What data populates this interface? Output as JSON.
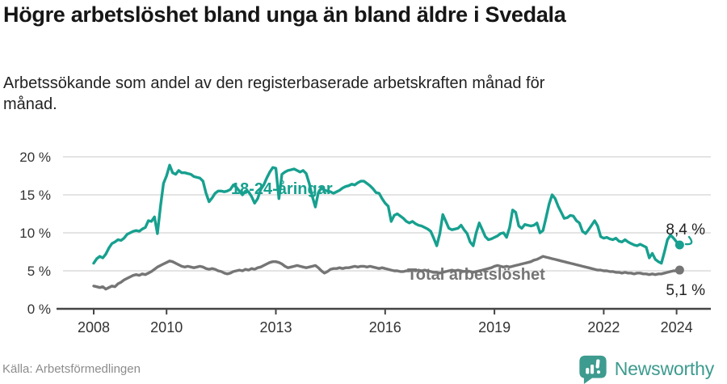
{
  "header": {
    "title": "Högre arbetslöshet bland unga än bland äldre i Svedala",
    "subtitle": "Arbetssökande som andel av den registerbaserade arbetskraften månad för månad."
  },
  "footer": {
    "source": "Källa: Arbetsförmedlingen",
    "brand": "Newsworthy",
    "brand_color": "#3d9b8f"
  },
  "chart_data": {
    "type": "line",
    "title": "",
    "xlabel": "",
    "ylabel": "",
    "x_unit": "year-month",
    "x_start": 2008.0,
    "x_step_years": 0.08333,
    "x_ticks": [
      2008,
      2010,
      2013,
      2016,
      2019,
      2022,
      2024
    ],
    "y_ticks": [
      0,
      5,
      10,
      15,
      20
    ],
    "y_tick_suffix": " %",
    "ylim": [
      0,
      20.5
    ],
    "xlim": [
      2007.2,
      2024.9
    ],
    "grid": true,
    "legend_position": "inline-labels",
    "series": [
      {
        "id": "youth",
        "name": "18-24-åringar",
        "color": "#17a08f",
        "end_label": "8,4 %",
        "end_value": 8.4,
        "values": [
          6.0,
          6.6,
          6.9,
          6.7,
          7.2,
          8.0,
          8.6,
          8.8,
          9.1,
          9.0,
          9.3,
          9.8,
          10.0,
          10.2,
          10.3,
          10.2,
          10.5,
          10.7,
          11.6,
          11.5,
          12.1,
          9.9,
          13.5,
          16.5,
          17.5,
          18.9,
          17.9,
          17.7,
          18.2,
          17.9,
          17.9,
          17.8,
          17.7,
          17.4,
          17.3,
          17.2,
          16.8,
          15.2,
          14.1,
          14.6,
          15.2,
          15.5,
          15.5,
          15.4,
          15.5,
          15.7,
          16.3,
          16.0,
          15.5,
          15.0,
          15.5,
          15.4,
          14.8,
          13.9,
          14.5,
          15.7,
          16.3,
          17.2,
          18.0,
          18.6,
          18.5,
          14.5,
          17.7,
          18.0,
          18.2,
          18.3,
          18.4,
          18.2,
          18.0,
          18.2,
          17.8,
          16.5,
          14.8,
          13.4,
          15.3,
          15.9,
          15.6,
          15.5,
          15.4,
          15.2,
          15.4,
          15.6,
          15.9,
          16.1,
          16.2,
          16.4,
          16.3,
          16.6,
          16.8,
          16.8,
          16.5,
          16.2,
          15.8,
          15.3,
          15.2,
          14.5,
          13.9,
          13.5,
          11.5,
          12.3,
          12.5,
          12.2,
          11.9,
          11.5,
          11.3,
          11.5,
          11.2,
          11.0,
          10.9,
          10.7,
          10.5,
          10.2,
          9.3,
          8.3,
          9.9,
          12.4,
          11.5,
          10.6,
          10.4,
          10.5,
          10.6,
          11.0,
          10.4,
          9.9,
          8.8,
          8.3,
          10.0,
          11.3,
          10.4,
          9.5,
          9.1,
          9.2,
          9.4,
          9.6,
          9.9,
          10.0,
          9.4,
          10.7,
          13.0,
          12.7,
          10.9,
          10.6,
          11.1,
          11.0,
          10.9,
          11.0,
          11.3,
          10.0,
          10.3,
          12.0,
          13.8,
          15.0,
          14.5,
          13.5,
          12.7,
          11.9,
          12.0,
          12.3,
          12.2,
          11.6,
          11.3,
          10.2,
          9.9,
          10.4,
          11.0,
          11.6,
          10.9,
          9.5,
          9.3,
          9.4,
          9.2,
          9.1,
          9.3,
          8.9,
          8.8,
          9.1,
          8.8,
          8.6,
          8.4,
          8.3,
          8.5,
          8.3,
          8.1,
          6.7,
          7.3,
          6.5,
          6.2,
          6.0,
          7.5,
          9.1,
          9.7,
          9.3,
          8.8,
          8.4
        ]
      },
      {
        "id": "total",
        "name": "Total arbetslöshet",
        "color": "#757575",
        "end_label": "5,1 %",
        "end_value": 5.1,
        "values": [
          3.0,
          2.9,
          2.8,
          2.9,
          2.6,
          2.8,
          3.0,
          2.9,
          3.3,
          3.5,
          3.8,
          4.0,
          4.2,
          4.4,
          4.5,
          4.4,
          4.6,
          4.5,
          4.7,
          4.9,
          5.2,
          5.5,
          5.7,
          5.9,
          6.1,
          6.3,
          6.2,
          6.0,
          5.8,
          5.6,
          5.5,
          5.6,
          5.5,
          5.4,
          5.5,
          5.6,
          5.5,
          5.3,
          5.2,
          5.3,
          5.2,
          5.0,
          4.9,
          4.7,
          4.6,
          4.7,
          4.9,
          5.0,
          5.1,
          5.0,
          5.2,
          5.1,
          5.3,
          5.2,
          5.4,
          5.5,
          5.7,
          5.9,
          6.1,
          6.2,
          6.2,
          6.1,
          5.9,
          5.6,
          5.4,
          5.5,
          5.6,
          5.7,
          5.6,
          5.5,
          5.4,
          5.5,
          5.6,
          5.7,
          5.4,
          5.0,
          4.7,
          4.9,
          5.2,
          5.3,
          5.3,
          5.4,
          5.3,
          5.4,
          5.4,
          5.5,
          5.6,
          5.5,
          5.6,
          5.6,
          5.5,
          5.6,
          5.5,
          5.4,
          5.3,
          5.4,
          5.3,
          5.2,
          5.1,
          5.0,
          5.0,
          4.9,
          4.9,
          5.0,
          5.0,
          5.1,
          5.0,
          5.1,
          5.0,
          5.1,
          5.0,
          4.9,
          4.8,
          4.8,
          4.7,
          4.8,
          4.9,
          5.0,
          5.1,
          5.0,
          5.1,
          5.0,
          4.9,
          5.0,
          4.9,
          4.8,
          4.9,
          5.0,
          5.1,
          5.2,
          5.3,
          5.4,
          5.6,
          5.7,
          5.6,
          5.5,
          5.6,
          5.5,
          5.6,
          5.7,
          5.8,
          5.9,
          6.0,
          6.1,
          6.2,
          6.4,
          6.5,
          6.7,
          6.9,
          6.8,
          6.7,
          6.6,
          6.5,
          6.4,
          6.3,
          6.2,
          6.1,
          6.0,
          5.9,
          5.8,
          5.7,
          5.6,
          5.5,
          5.4,
          5.3,
          5.2,
          5.1,
          5.1,
          5.0,
          5.0,
          4.9,
          4.9,
          4.8,
          4.8,
          4.7,
          4.8,
          4.7,
          4.7,
          4.6,
          4.7,
          4.7,
          4.6,
          4.6,
          4.5,
          4.6,
          4.5,
          4.6,
          4.6,
          4.7,
          4.8,
          4.9,
          5.0,
          5.0,
          5.1
        ]
      }
    ]
  }
}
